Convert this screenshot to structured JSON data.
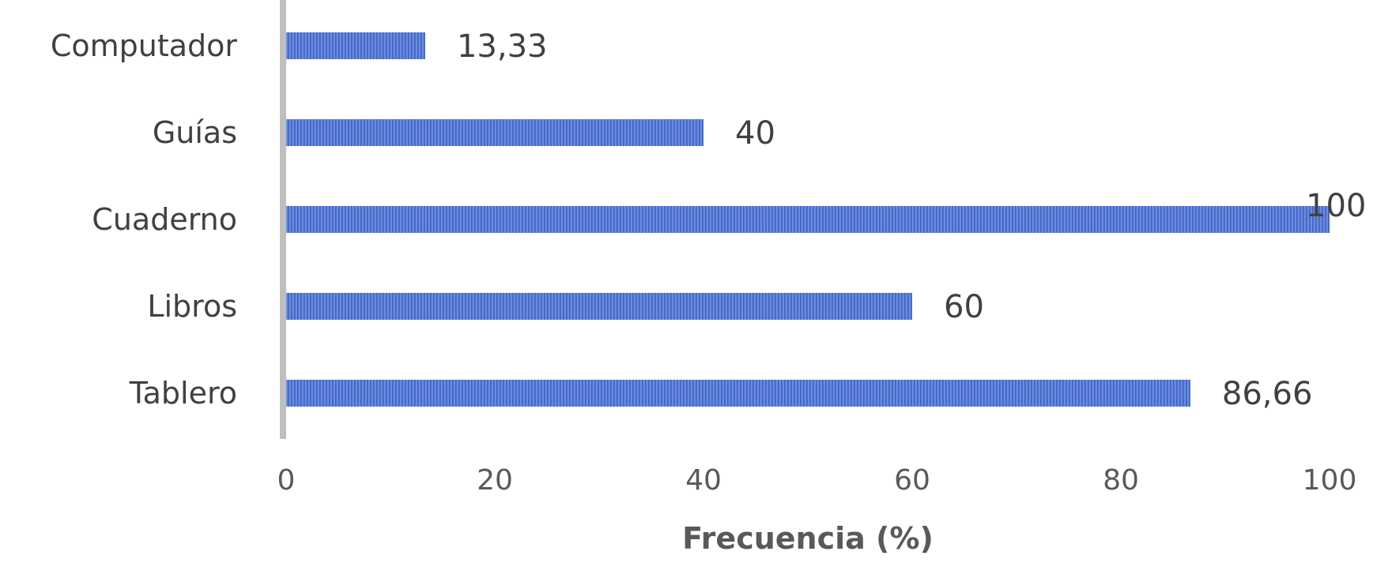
{
  "chart_data": {
    "type": "bar",
    "orientation": "horizontal",
    "categories": [
      "Computador",
      "Guías",
      "Cuaderno",
      "Libros",
      "Tablero"
    ],
    "values": [
      13.33,
      40,
      100,
      60,
      86.66
    ],
    "data_labels": [
      "13,33",
      "40",
      "100",
      "60",
      "86,66"
    ],
    "xlabel": "Frecuencia (%)",
    "ylabel": "",
    "xlim": [
      0,
      100
    ],
    "xticks": [
      0,
      20,
      40,
      60,
      80,
      100
    ],
    "xtick_labels": [
      "0",
      "20",
      "40",
      "60",
      "80",
      "100"
    ],
    "grid": false,
    "legend": "none",
    "colors": {
      "bar": "#5b7fd6",
      "bar_stripe": "#3f62c2",
      "axis": "#bfbfbf",
      "text": "#404040"
    }
  }
}
